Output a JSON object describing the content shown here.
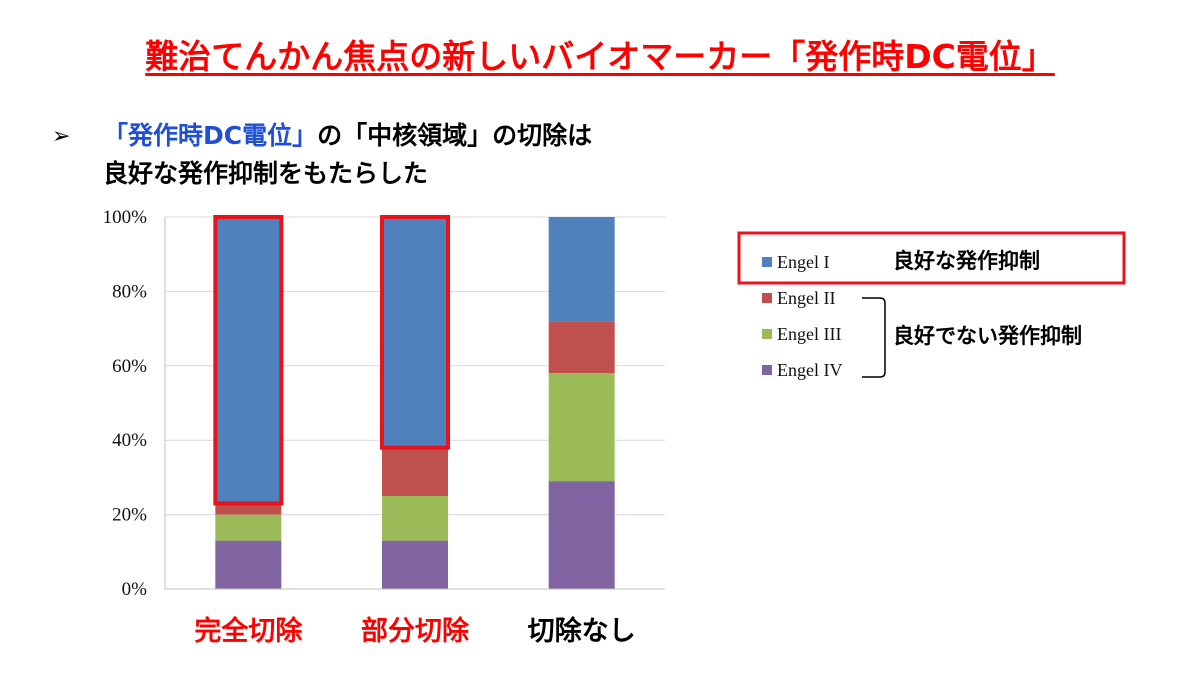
{
  "title": "難治てんかん焦点の新しいバイオマーカー「発作時DC電位」",
  "bullet": {
    "marker": "➢",
    "line1_blue": "「発作時DC電位」",
    "line1_rest": "の「中核領域」の切除は",
    "line2": "良好な発作抑制をもたらした"
  },
  "legend_notes": {
    "good": "良好な発作抑制",
    "not_good": "良好でない発作抑制"
  },
  "colors": {
    "title": "#ff0000",
    "highlight_box": "#e8131b",
    "axis": "#bfbfbf",
    "grid": "#d9d9d9"
  },
  "chart_data": {
    "type": "bar",
    "stacked": true,
    "percent_stacked": true,
    "categories": [
      "完全切除",
      "部分切除",
      "切除なし"
    ],
    "category_colors": [
      "#ff0000",
      "#ff0000",
      "#000000"
    ],
    "series": [
      {
        "name": "Engel IV",
        "color": "#8064a2",
        "values": [
          13,
          13,
          29
        ]
      },
      {
        "name": "Engel III",
        "color": "#9bbb59",
        "values": [
          7,
          12,
          29
        ]
      },
      {
        "name": "Engel II",
        "color": "#c0504d",
        "values": [
          3,
          13,
          14
        ]
      },
      {
        "name": "Engel I",
        "color": "#4f81bd",
        "values": [
          77,
          62,
          28
        ]
      }
    ],
    "legend_order": [
      "Engel I",
      "Engel II",
      "Engel III",
      "Engel IV"
    ],
    "legend_position": "right",
    "yticks": [
      "0%",
      "20%",
      "40%",
      "60%",
      "80%",
      "100%"
    ],
    "ylim": [
      0,
      100
    ],
    "grid": true,
    "highlighted_series": "Engel I",
    "highlighted_categories": [
      "完全切除",
      "部分切除"
    ]
  }
}
